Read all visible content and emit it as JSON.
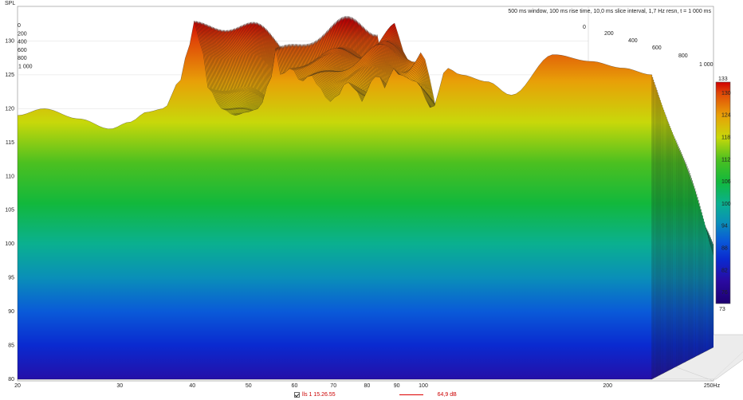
{
  "chart_data": {
    "type": "waterfall",
    "ylabel": "SPL",
    "xunit": "Hz",
    "info": "500 ms window, 100 ms rise time, 10,0 ms slice interval, 1,7 Hz resn, t = 1 000 ms",
    "x_ticks": [
      "20",
      "30",
      "40",
      "50",
      "60",
      "70",
      "80",
      "90",
      "100",
      "200",
      "250Hz"
    ],
    "x_tick_values": [
      20,
      30,
      40,
      50,
      60,
      70,
      80,
      90,
      100,
      200,
      250
    ],
    "xlim": [
      20,
      250
    ],
    "y_ticks": [
      "80",
      "85",
      "90",
      "95",
      "100",
      "105",
      "110",
      "115",
      "120",
      "125",
      "130"
    ],
    "y_tick_values": [
      80,
      85,
      90,
      95,
      100,
      105,
      110,
      115,
      120,
      125,
      130
    ],
    "ylim": [
      80,
      133
    ],
    "time_ticks_left": [
      "0",
      "200",
      "400",
      "600",
      "800",
      "1 000"
    ],
    "time_ticks_right": [
      "0",
      "200",
      "400",
      "600",
      "800",
      "1 000"
    ],
    "time_unit": "ms",
    "colorbar": {
      "max_label": "133",
      "min_label": "73",
      "tick_labels": [
        "130",
        "124",
        "118",
        "112",
        "106",
        "100",
        "94",
        "88",
        "82",
        "76"
      ],
      "tick_values": [
        130,
        124,
        118,
        112,
        106,
        100,
        94,
        88,
        82,
        76
      ],
      "range": [
        73,
        133
      ]
    },
    "front_slice": {
      "freq": [
        20,
        22,
        25,
        28,
        30,
        32,
        34,
        36,
        37,
        38,
        39,
        40,
        42,
        44,
        46,
        48,
        50,
        51,
        52,
        54,
        56,
        58,
        60,
        62,
        64,
        66,
        68,
        70,
        72,
        74,
        76,
        78,
        80,
        85,
        90,
        95,
        100,
        110,
        120,
        140,
        160,
        180,
        200
      ],
      "spl": [
        119,
        120,
        118.5,
        117,
        118,
        119.5,
        120,
        124,
        128,
        133,
        129,
        123,
        120,
        119,
        119.5,
        120,
        124,
        129,
        125,
        126,
        124,
        125,
        123,
        121,
        122,
        124,
        123,
        121,
        124,
        125,
        123,
        126,
        125,
        124,
        120,
        126,
        125,
        124,
        122,
        128,
        127,
        126,
        125
      ]
    },
    "peak": {
      "freq": 38,
      "spl": 133
    }
  },
  "legend": {
    "checkbox_checked": true,
    "name": "lls 1 15.26.55",
    "value": "64,9 dB",
    "color": "#d01010"
  },
  "colors": {
    "background": "#ffffff",
    "plot_panel": "#f2f2f2",
    "grid": "#d8d8d8",
    "axis": "#555555"
  }
}
